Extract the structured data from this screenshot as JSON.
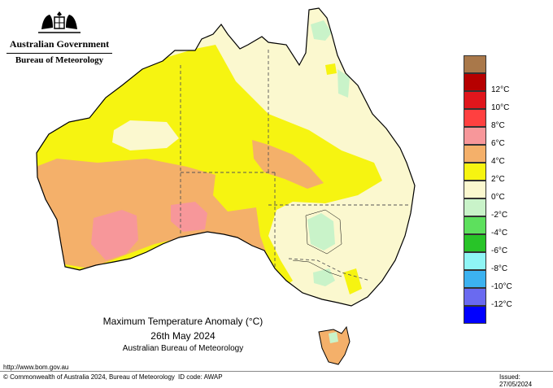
{
  "branding": {
    "government": "Australian Government",
    "agency": "Bureau of Meteorology"
  },
  "map_title": {
    "line1": "Maximum Temperature Anomaly (°C)",
    "line2": "26th May 2024",
    "line3": "Australian Bureau of Meteorology"
  },
  "legend": {
    "items": [
      {
        "label": "",
        "color": "#a9784a"
      },
      {
        "label": "12°C",
        "color": "#b60000"
      },
      {
        "label": "10°C",
        "color": "#e0161c"
      },
      {
        "label": "8°C",
        "color": "#ff4040"
      },
      {
        "label": "6°C",
        "color": "#f7979a"
      },
      {
        "label": "4°C",
        "color": "#f4b06a"
      },
      {
        "label": "2°C",
        "color": "#f6f411"
      },
      {
        "label": "0°C",
        "color": "#fbf8cf"
      },
      {
        "label": "-2°C",
        "color": "#c9f3c9"
      },
      {
        "label": "-4°C",
        "color": "#5de05d"
      },
      {
        "label": "-6°C",
        "color": "#28c428"
      },
      {
        "label": "-8°C",
        "color": "#8ff5f5"
      },
      {
        "label": "-10°C",
        "color": "#3cb2f0"
      },
      {
        "label": "-12°C",
        "color": "#6a6af0"
      },
      {
        "label": "",
        "color": "#0000ff"
      }
    ]
  },
  "footer": {
    "url": "http://www.bom.gov.au",
    "copyright": "© Commonwealth of Australia 2024, Bureau of Meteorology",
    "id_code": "ID code: AWAP",
    "issued": "Issued: 27/05/2024"
  },
  "colors": {
    "outline": "#000000",
    "state_border": "#555555",
    "background": "#ffffff"
  }
}
